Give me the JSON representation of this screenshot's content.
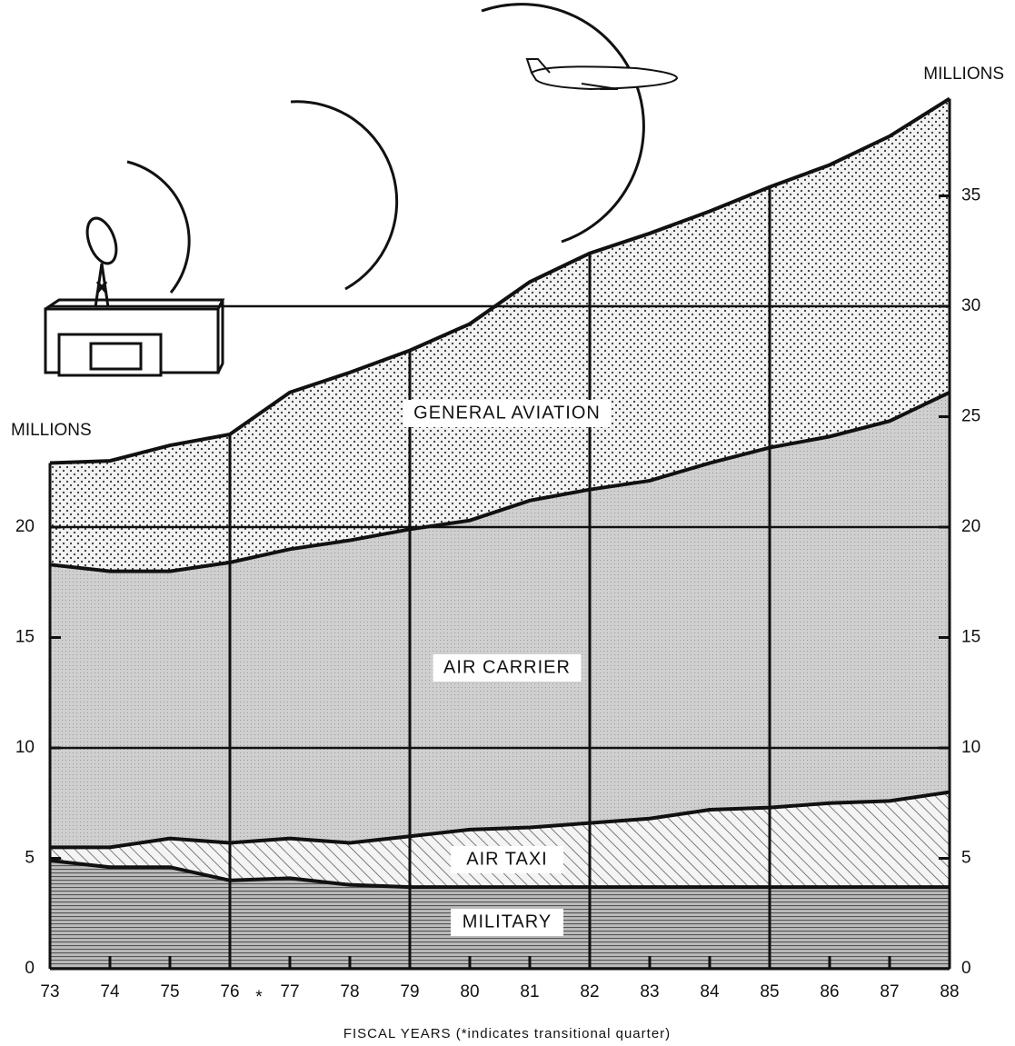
{
  "chart_data": {
    "type": "stacked_area",
    "y_axis_title": "MILLIONS",
    "y2_axis_title": "MILLIONS",
    "x_axis_title": "FISCAL YEARS (*indicates transitional quarter)",
    "transition_marker": "*",
    "categories": [
      "73",
      "74",
      "75",
      "76",
      "77",
      "78",
      "79",
      "80",
      "81",
      "82",
      "83",
      "84",
      "85",
      "86",
      "87",
      "88"
    ],
    "series": [
      {
        "name": "MILITARY",
        "color": "#9a9a9a",
        "pattern": "hlines",
        "values": [
          4.9,
          4.6,
          4.6,
          4.0,
          4.1,
          3.8,
          3.7,
          3.7,
          3.7,
          3.7,
          3.7,
          3.7,
          3.7,
          3.7,
          3.7,
          3.7
        ]
      },
      {
        "name": "AIR TAXI",
        "color": "#555555",
        "pattern": "hatch",
        "values": [
          0.6,
          0.9,
          1.3,
          1.7,
          1.8,
          1.9,
          2.3,
          2.6,
          2.7,
          2.9,
          3.1,
          3.5,
          3.6,
          3.8,
          3.9,
          4.3
        ]
      },
      {
        "name": "AIR CARRIER",
        "color": "#c8c8c8",
        "pattern": "gray",
        "values": [
          12.8,
          12.5,
          12.1,
          12.7,
          13.1,
          13.7,
          13.9,
          14.0,
          14.8,
          15.1,
          15.3,
          15.7,
          16.3,
          16.6,
          17.2,
          18.1
        ]
      },
      {
        "name": "GENERAL AVIATION",
        "color": "#333333",
        "pattern": "dots",
        "values": [
          4.6,
          5.0,
          5.7,
          5.8,
          7.1,
          7.6,
          8.1,
          8.9,
          9.9,
          10.7,
          11.2,
          11.4,
          11.8,
          12.3,
          12.9,
          13.3
        ]
      }
    ],
    "ylim": [
      0,
      40
    ],
    "yticks": [
      0,
      5,
      10,
      15,
      20
    ],
    "y2lim": [
      0,
      40
    ],
    "y2ticks": [
      0,
      5,
      10,
      15,
      20,
      25,
      30,
      35
    ],
    "grid_y": [
      10,
      20,
      30
    ],
    "grid_x_every": 3
  }
}
